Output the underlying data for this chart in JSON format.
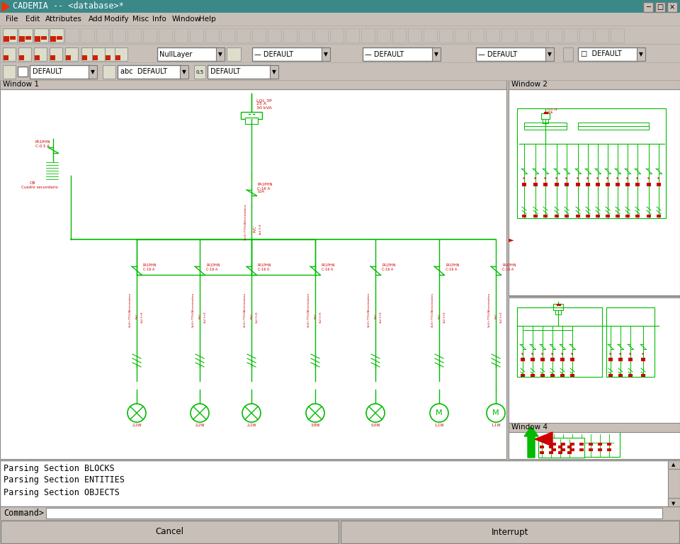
{
  "bg_color": "#c8c0b8",
  "title_bar_color": "#3a8888",
  "title_text": "CADEMIA -- <database>*",
  "title_text_color": "#ffffff",
  "menu_items": [
    "File",
    "Edit",
    "Attributes",
    "Add",
    "Modify",
    "Misc",
    "Info",
    "Window",
    "Help"
  ],
  "window1_label": "Window 1",
  "window2_label": "Window 2",
  "window4_label": "Window 4",
  "circuit_color": "#00bb00",
  "label_color": "#cc0000",
  "white_bg": "#ffffff",
  "console_lines": [
    "Parsing Section BLOCKS",
    "Parsing Section ENTITIES",
    "Parsing Section OBJECTS"
  ],
  "btn_cancel": "Cancel",
  "btn_interrupt": "Interrupt",
  "command_label": "Command>"
}
